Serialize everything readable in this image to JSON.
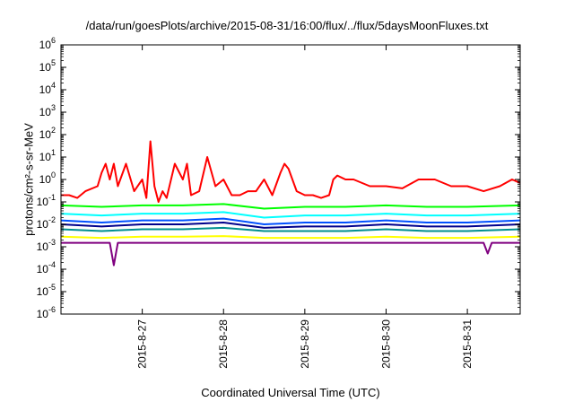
{
  "chart_data": {
    "type": "line",
    "title": "/data/run/goesPlots/archive/2015-08-31/16:00/flux/../flux/5daysMoonFluxes.txt",
    "xlabel": "Coordinated Universal Time (UTC)",
    "ylabel": "protons/cm²-s-sr-MeV",
    "yscale": "log",
    "ylim": [
      1e-06,
      1000000.0
    ],
    "xlim": [
      0,
      5.65
    ],
    "grid": false,
    "y_ticks": [
      {
        "base": "10",
        "exp": "-6"
      },
      {
        "base": "10",
        "exp": "-5"
      },
      {
        "base": "10",
        "exp": "-4"
      },
      {
        "base": "10",
        "exp": "-3"
      },
      {
        "base": "10",
        "exp": "-2"
      },
      {
        "base": "10",
        "exp": "-1"
      },
      {
        "base": "10",
        "exp": "0"
      },
      {
        "base": "10",
        "exp": "1"
      },
      {
        "base": "10",
        "exp": "2"
      },
      {
        "base": "10",
        "exp": "3"
      },
      {
        "base": "10",
        "exp": "4"
      },
      {
        "base": "10",
        "exp": "5"
      },
      {
        "base": "10",
        "exp": "6"
      }
    ],
    "x_ticks": [
      {
        "x": 1,
        "label": "2015-8-27"
      },
      {
        "x": 2,
        "label": "2015-8-28"
      },
      {
        "x": 3,
        "label": "2015-8-29"
      },
      {
        "x": 4,
        "label": "2015-8-30"
      },
      {
        "x": 5,
        "label": "2015-8-31"
      }
    ],
    "series": [
      {
        "color": "#ff0000",
        "x": [
          0,
          0.1,
          0.2,
          0.3,
          0.45,
          0.5,
          0.55,
          0.6,
          0.65,
          0.7,
          0.8,
          0.9,
          1.0,
          1.05,
          1.1,
          1.15,
          1.2,
          1.25,
          1.3,
          1.4,
          1.5,
          1.55,
          1.6,
          1.7,
          1.8,
          1.9,
          2.0,
          2.1,
          2.2,
          2.3,
          2.4,
          2.5,
          2.6,
          2.7,
          2.75,
          2.8,
          2.9,
          3.0,
          3.1,
          3.2,
          3.3,
          3.35,
          3.4,
          3.5,
          3.6,
          3.8,
          4.0,
          4.2,
          4.4,
          4.6,
          4.8,
          5.0,
          5.2,
          5.4,
          5.55,
          5.65
        ],
        "y": [
          0.2,
          0.2,
          0.15,
          0.3,
          0.5,
          2,
          5,
          1,
          5,
          0.5,
          5,
          0.3,
          1,
          0.15,
          50,
          0.5,
          0.1,
          0.3,
          0.15,
          5,
          1,
          5,
          0.2,
          0.3,
          10,
          0.5,
          1,
          0.2,
          0.2,
          0.3,
          0.3,
          1,
          0.2,
          2,
          5,
          3,
          0.3,
          0.2,
          0.2,
          0.15,
          0.2,
          1,
          1.5,
          1,
          1,
          0.5,
          0.5,
          0.4,
          1,
          1,
          0.5,
          0.5,
          0.3,
          0.5,
          1,
          0.7
        ]
      },
      {
        "color": "#00ff00",
        "x": [
          0,
          0.5,
          1.0,
          1.5,
          2.0,
          2.5,
          3.0,
          3.5,
          4.0,
          4.5,
          5.0,
          5.65
        ],
        "y": [
          0.07,
          0.06,
          0.07,
          0.07,
          0.08,
          0.05,
          0.06,
          0.06,
          0.07,
          0.06,
          0.06,
          0.07
        ]
      },
      {
        "color": "#00ffff",
        "x": [
          0,
          0.5,
          1.0,
          1.5,
          2.0,
          2.5,
          3.0,
          3.5,
          4.0,
          4.5,
          5.0,
          5.65
        ],
        "y": [
          0.03,
          0.025,
          0.03,
          0.03,
          0.035,
          0.02,
          0.025,
          0.025,
          0.03,
          0.025,
          0.025,
          0.03
        ]
      },
      {
        "color": "#0050ff",
        "x": [
          0,
          0.5,
          1.0,
          1.5,
          2.0,
          2.5,
          3.0,
          3.5,
          4.0,
          4.5,
          5.0,
          5.65
        ],
        "y": [
          0.015,
          0.012,
          0.015,
          0.015,
          0.018,
          0.01,
          0.012,
          0.012,
          0.015,
          0.012,
          0.012,
          0.015
        ]
      },
      {
        "color": "#00008b",
        "x": [
          0,
          0.5,
          1.0,
          1.5,
          2.0,
          2.5,
          3.0,
          3.5,
          4.0,
          4.5,
          5.0,
          5.65
        ],
        "y": [
          0.01,
          0.008,
          0.01,
          0.01,
          0.012,
          0.007,
          0.008,
          0.008,
          0.01,
          0.008,
          0.008,
          0.01
        ]
      },
      {
        "color": "#009090",
        "x": [
          0,
          0.5,
          1.0,
          1.5,
          2.0,
          2.5,
          3.0,
          3.5,
          4.0,
          4.5,
          5.0,
          5.65
        ],
        "y": [
          0.006,
          0.005,
          0.006,
          0.006,
          0.007,
          0.005,
          0.005,
          0.005,
          0.006,
          0.005,
          0.005,
          0.006
        ]
      },
      {
        "color": "#ffff00",
        "x": [
          0,
          0.5,
          1.0,
          1.5,
          2.0,
          2.5,
          3.0,
          3.5,
          4.0,
          4.5,
          5.0,
          5.65
        ],
        "y": [
          0.0028,
          0.0025,
          0.0028,
          0.0028,
          0.003,
          0.0025,
          0.0025,
          0.0025,
          0.0028,
          0.0025,
          0.0025,
          0.0028
        ]
      },
      {
        "color": "#800080",
        "x": [
          0,
          0.3,
          0.6,
          0.65,
          0.7,
          1.0,
          1.5,
          2.0,
          2.5,
          3.0,
          3.5,
          4.0,
          4.5,
          5.0,
          5.2,
          5.25,
          5.3,
          5.65
        ],
        "y": [
          0.0015,
          0.0015,
          0.0015,
          0.00015,
          0.0015,
          0.0015,
          0.0015,
          0.0015,
          0.0015,
          0.0015,
          0.0015,
          0.0015,
          0.0015,
          0.0015,
          0.0015,
          0.0005,
          0.0015,
          0.0015
        ]
      }
    ]
  }
}
